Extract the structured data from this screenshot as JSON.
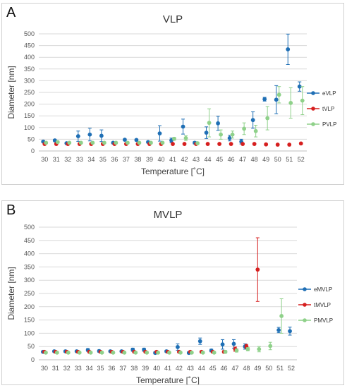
{
  "panel_labels": [
    "A",
    "B"
  ],
  "colors": {
    "blue": "#1f6fb5",
    "red": "#d61f1f",
    "green": "#8fd18a",
    "grid": "#d9d9d9",
    "axis": "#bfbfbf"
  },
  "chart_data": [
    {
      "type": "scatter",
      "title": "VLP",
      "xlabel": "Temperature [˚C]",
      "ylabel": "Diameter [nm]",
      "ylim": [
        0,
        500
      ],
      "yticks": [
        0,
        50,
        100,
        150,
        200,
        250,
        300,
        350,
        400,
        450,
        500
      ],
      "grid": "horizontal",
      "legend_position": "right",
      "categories": [
        "30",
        "31",
        "32",
        "33",
        "34",
        "35",
        "36",
        "37",
        "38",
        "39",
        "40",
        "41",
        "42",
        "43",
        "44",
        "45",
        "46",
        "47",
        "48",
        "49",
        "50",
        "51",
        "52"
      ],
      "series": [
        {
          "name": "eVLP",
          "color": "#1f6fb5",
          "values": [
            40,
            45,
            33,
            63,
            70,
            65,
            35,
            48,
            47,
            38,
            75,
            45,
            104,
            35,
            78,
            118,
            55,
            40,
            132,
            221,
            219,
            434,
            275
          ],
          "errors": [
            4,
            4,
            3,
            22,
            27,
            25,
            4,
            4,
            4,
            4,
            33,
            10,
            32,
            5,
            25,
            30,
            12,
            10,
            35,
            8,
            60,
            65,
            20
          ]
        },
        {
          "name": "tVLP",
          "color": "#d61f1f",
          "values": [
            30,
            30,
            30,
            30,
            30,
            30,
            30,
            30,
            30,
            30,
            30,
            30,
            30,
            30,
            30,
            30,
            30,
            30,
            30,
            28,
            27,
            27,
            32
          ],
          "errors": [
            3,
            3,
            3,
            3,
            3,
            3,
            3,
            3,
            3,
            3,
            3,
            3,
            3,
            3,
            3,
            3,
            3,
            3,
            3,
            3,
            3,
            3,
            4
          ]
        },
        {
          "name": "PVLP",
          "color": "#8fd18a",
          "values": [
            35,
            38,
            35,
            35,
            35,
            35,
            35,
            35,
            35,
            35,
            35,
            52,
            55,
            33,
            120,
            70,
            70,
            95,
            85,
            140,
            240,
            205,
            215
          ],
          "errors": [
            4,
            4,
            4,
            4,
            4,
            4,
            4,
            4,
            4,
            4,
            4,
            6,
            10,
            5,
            60,
            20,
            15,
            25,
            25,
            50,
            35,
            65,
            60
          ]
        }
      ]
    },
    {
      "type": "scatter",
      "title": "MVLP",
      "xlabel": "Temperature [˚C]",
      "ylabel": "Diameter [nm]",
      "ylim": [
        0,
        500
      ],
      "yticks": [
        0,
        50,
        100,
        150,
        200,
        250,
        300,
        350,
        400,
        450,
        500
      ],
      "grid": "horizontal",
      "legend_position": "right",
      "categories": [
        "30",
        "31",
        "32",
        "33",
        "34",
        "35",
        "36",
        "37",
        "38",
        "39",
        "40",
        "41",
        "42",
        "43",
        "44",
        "45",
        "46",
        "47",
        "48",
        "49",
        "50",
        "51",
        "52"
      ],
      "series": [
        {
          "name": "eMVLP",
          "color": "#1f6fb5",
          "values": [
            30,
            32,
            32,
            32,
            37,
            33,
            32,
            32,
            38,
            38,
            26,
            32,
            48,
            26,
            70,
            35,
            58,
            60,
            50,
            null,
            null,
            112,
            108
          ],
          "errors": [
            3,
            3,
            4,
            3,
            5,
            4,
            3,
            3,
            6,
            6,
            4,
            4,
            12,
            4,
            12,
            5,
            18,
            16,
            10,
            null,
            null,
            10,
            15
          ]
        },
        {
          "name": "tMVLP",
          "color": "#d61f1f",
          "values": [
            30,
            30,
            30,
            30,
            30,
            30,
            30,
            30,
            30,
            30,
            30,
            30,
            30,
            30,
            30,
            30,
            30,
            40,
            50,
            340,
            null,
            null,
            null
          ],
          "errors": [
            3,
            3,
            3,
            3,
            3,
            3,
            3,
            3,
            3,
            3,
            3,
            3,
            3,
            3,
            3,
            3,
            4,
            8,
            8,
            120,
            null,
            null,
            null
          ]
        },
        {
          "name": "PMVLP",
          "color": "#8fd18a",
          "values": [
            27,
            27,
            27,
            27,
            27,
            27,
            27,
            27,
            27,
            27,
            27,
            27,
            27,
            27,
            27,
            27,
            30,
            35,
            40,
            40,
            52,
            165,
            null
          ],
          "errors": [
            3,
            3,
            3,
            3,
            3,
            3,
            3,
            3,
            3,
            3,
            3,
            3,
            3,
            3,
            3,
            3,
            5,
            6,
            6,
            10,
            14,
            65,
            null
          ]
        }
      ]
    }
  ]
}
